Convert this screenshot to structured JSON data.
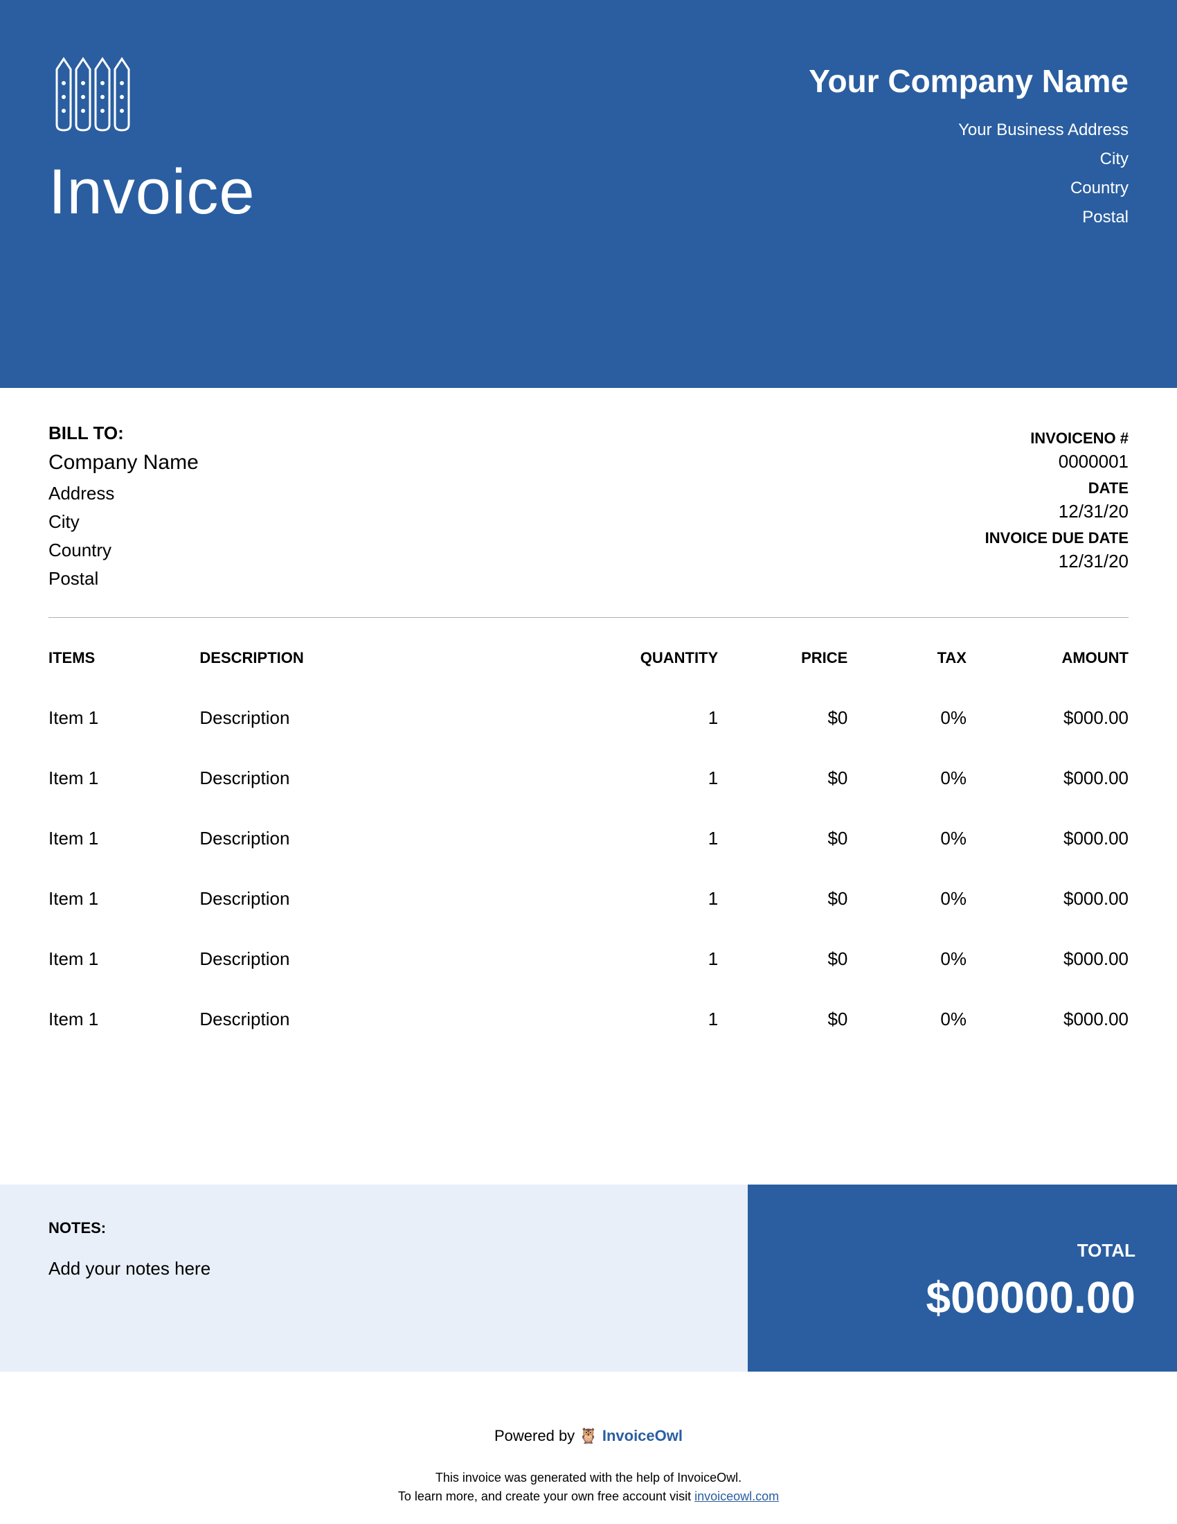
{
  "colors": {
    "primary": "#2a5ea0",
    "light_blue": "#e8eff9",
    "white": "#ffffff",
    "text": "#000000",
    "divider": "#b0b0b0"
  },
  "header": {
    "title": "Invoice",
    "company_name": "Your Company Name",
    "address": "Your Business Address",
    "city": "City",
    "country": "Country",
    "postal": "Postal"
  },
  "bill_to": {
    "label": "BILL TO:",
    "company": "Company Name",
    "address": "Address",
    "city": "City",
    "country": "Country",
    "postal": "Postal"
  },
  "meta": {
    "invoice_no_label": "INVOICENO #",
    "invoice_no": "0000001",
    "date_label": "DATE",
    "date": "12/31/20",
    "due_label": "INVOICE DUE DATE",
    "due": "12/31/20"
  },
  "table": {
    "headers": {
      "items": "ITEMS",
      "description": "DESCRIPTION",
      "quantity": "QUANTITY",
      "price": "PRICE",
      "tax": "TAX",
      "amount": "AMOUNT"
    },
    "rows": [
      {
        "item": "Item 1",
        "description": "Description",
        "quantity": "1",
        "price": "$0",
        "tax": "0%",
        "amount": "$000.00"
      },
      {
        "item": "Item 1",
        "description": "Description",
        "quantity": "1",
        "price": "$0",
        "tax": "0%",
        "amount": "$000.00"
      },
      {
        "item": "Item 1",
        "description": "Description",
        "quantity": "1",
        "price": "$0",
        "tax": "0%",
        "amount": "$000.00"
      },
      {
        "item": "Item 1",
        "description": "Description",
        "quantity": "1",
        "price": "$0",
        "tax": "0%",
        "amount": "$000.00"
      },
      {
        "item": "Item 1",
        "description": "Description",
        "quantity": "1",
        "price": "$0",
        "tax": "0%",
        "amount": "$000.00"
      },
      {
        "item": "Item 1",
        "description": "Description",
        "quantity": "1",
        "price": "$0",
        "tax": "0%",
        "amount": "$000.00"
      }
    ]
  },
  "notes": {
    "label": "NOTES:",
    "text": "Add your notes here"
  },
  "total": {
    "label": "TOTAL",
    "value": "$00000.00"
  },
  "powered": {
    "prefix": "Powered by",
    "brand": "InvoiceOwl"
  },
  "footer": {
    "line1": "This invoice was generated with the help of InvoiceOwl.",
    "line2_prefix": "To learn more, and create your own free account visit ",
    "link": "invoiceowl.com"
  }
}
